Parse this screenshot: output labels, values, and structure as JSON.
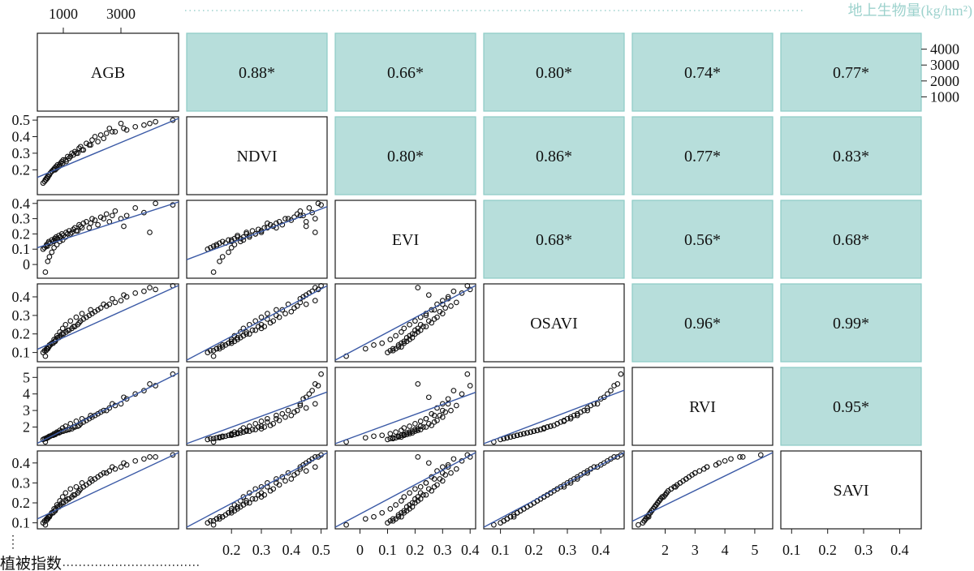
{
  "chart_data": {
    "type": "scatter",
    "variables": [
      "AGB",
      "NDVI",
      "EVI",
      "OSAVI",
      "RVI",
      "SAVI"
    ],
    "annotations": {
      "top_label": "地上生物量(kg/hm²)",
      "left_label": "植被指数"
    },
    "upper_correlations": [
      {
        "row": "AGB",
        "col": "NDVI",
        "text": "0.88*",
        "value": 0.88
      },
      {
        "row": "AGB",
        "col": "EVI",
        "text": "0.66*",
        "value": 0.66
      },
      {
        "row": "AGB",
        "col": "OSAVI",
        "text": "0.80*",
        "value": 0.8
      },
      {
        "row": "AGB",
        "col": "RVI",
        "text": "0.74*",
        "value": 0.74
      },
      {
        "row": "AGB",
        "col": "SAVI",
        "text": "0.77*",
        "value": 0.77
      },
      {
        "row": "NDVI",
        "col": "EVI",
        "text": "0.80*",
        "value": 0.8
      },
      {
        "row": "NDVI",
        "col": "OSAVI",
        "text": "0.86*",
        "value": 0.86
      },
      {
        "row": "NDVI",
        "col": "RVI",
        "text": "0.77*",
        "value": 0.77
      },
      {
        "row": "NDVI",
        "col": "SAVI",
        "text": "0.83*",
        "value": 0.83
      },
      {
        "row": "EVI",
        "col": "OSAVI",
        "text": "0.68*",
        "value": 0.68
      },
      {
        "row": "EVI",
        "col": "RVI",
        "text": "0.56*",
        "value": 0.56
      },
      {
        "row": "EVI",
        "col": "SAVI",
        "text": "0.68*",
        "value": 0.68
      },
      {
        "row": "OSAVI",
        "col": "RVI",
        "text": "0.96*",
        "value": 0.96
      },
      {
        "row": "OSAVI",
        "col": "SAVI",
        "text": "0.99*",
        "value": 0.99
      },
      {
        "row": "RVI",
        "col": "SAVI",
        "text": "0.95*",
        "value": 0.95
      }
    ],
    "axes": {
      "AGB": {
        "lim": [
          100,
          5000
        ],
        "ticks": [
          "1000",
          "3000"
        ],
        "right_ticks": [
          "1000",
          "2000",
          "3000",
          "4000"
        ]
      },
      "NDVI": {
        "lim": [
          0.05,
          0.52
        ],
        "ticks": [
          "0.2",
          "0.3",
          "0.4",
          "0.5"
        ],
        "left_ticks": [
          "0.2",
          "0.3",
          "0.4",
          "0.5"
        ]
      },
      "EVI": {
        "lim": [
          -0.09,
          0.42
        ],
        "ticks": [
          "0",
          "0.1",
          "0.2",
          "0.3",
          "0.4"
        ],
        "left_ticks": [
          "0",
          "0.1",
          "0.2",
          "0.3",
          "0.4"
        ]
      },
      "OSAVI": {
        "lim": [
          0.05,
          0.47
        ],
        "ticks": [
          "0.1",
          "0.2",
          "0.3",
          "0.4"
        ],
        "left_ticks": [
          "0.1",
          "0.2",
          "0.3",
          "0.4"
        ]
      },
      "RVI": {
        "lim": [
          0.9,
          5.6
        ],
        "ticks": [
          "2",
          "3",
          "4",
          "5"
        ],
        "left_ticks": [
          "2",
          "3",
          "4",
          "5"
        ]
      },
      "SAVI": {
        "lim": [
          0.07,
          0.46
        ],
        "ticks": [
          "0.1",
          "0.2",
          "0.3",
          "0.4"
        ],
        "left_ticks": [
          "0.1",
          "0.2",
          "0.3",
          "0.4"
        ]
      }
    },
    "points": {
      "AGB": [
        300,
        350,
        400,
        420,
        450,
        480,
        500,
        550,
        600,
        650,
        700,
        720,
        750,
        800,
        850,
        900,
        950,
        1000,
        1100,
        1150,
        1200,
        1300,
        1350,
        1400,
        1500,
        1550,
        1600,
        1700,
        1800,
        1900,
        2000,
        2100,
        2200,
        2300,
        2500,
        2600,
        2800,
        3000,
        3200,
        3500,
        3800,
        4200,
        4800,
        380,
        460,
        520,
        600,
        680,
        780,
        880,
        980,
        1080,
        1250,
        1450,
        1650,
        1950,
        2400,
        2700,
        3100,
        4000
      ],
      "NDVI": [
        0.12,
        0.13,
        0.14,
        0.15,
        0.15,
        0.16,
        0.17,
        0.18,
        0.19,
        0.2,
        0.21,
        0.2,
        0.22,
        0.23,
        0.22,
        0.24,
        0.25,
        0.26,
        0.25,
        0.28,
        0.27,
        0.3,
        0.29,
        0.31,
        0.3,
        0.33,
        0.34,
        0.32,
        0.36,
        0.35,
        0.38,
        0.4,
        0.37,
        0.41,
        0.42,
        0.45,
        0.43,
        0.48,
        0.44,
        0.46,
        0.47,
        0.49,
        0.5,
        0.14,
        0.16,
        0.17,
        0.19,
        0.2,
        0.21,
        0.23,
        0.24,
        0.26,
        0.28,
        0.3,
        0.32,
        0.35,
        0.39,
        0.43,
        0.45,
        0.48
      ],
      "EVI": [
        0.1,
        0.11,
        0.12,
        0.13,
        0.12,
        0.14,
        0.15,
        0.14,
        0.16,
        0.15,
        0.17,
        0.16,
        0.18,
        0.17,
        0.19,
        0.18,
        0.2,
        0.19,
        0.21,
        0.2,
        0.22,
        0.21,
        0.23,
        0.24,
        0.22,
        0.26,
        0.25,
        0.27,
        0.28,
        0.24,
        0.3,
        0.29,
        0.26,
        0.31,
        0.33,
        0.28,
        0.35,
        0.3,
        0.32,
        0.37,
        0.34,
        0.4,
        0.39,
        -0.05,
        0.02,
        0.05,
        0.08,
        0.11,
        0.13,
        0.15,
        0.16,
        0.18,
        0.2,
        0.22,
        0.24,
        0.27,
        0.3,
        0.32,
        0.25,
        0.21
      ],
      "OSAVI": [
        0.1,
        0.11,
        0.11,
        0.12,
        0.12,
        0.13,
        0.13,
        0.14,
        0.15,
        0.15,
        0.16,
        0.16,
        0.17,
        0.18,
        0.18,
        0.19,
        0.2,
        0.2,
        0.21,
        0.22,
        0.22,
        0.23,
        0.24,
        0.24,
        0.25,
        0.26,
        0.27,
        0.28,
        0.29,
        0.3,
        0.31,
        0.32,
        0.33,
        0.34,
        0.35,
        0.36,
        0.37,
        0.38,
        0.4,
        0.42,
        0.43,
        0.44,
        0.46,
        0.08,
        0.12,
        0.14,
        0.15,
        0.17,
        0.19,
        0.21,
        0.23,
        0.25,
        0.27,
        0.29,
        0.31,
        0.33,
        0.36,
        0.39,
        0.41,
        0.45
      ],
      "RVI": [
        1.25,
        1.3,
        1.3,
        1.35,
        1.35,
        1.4,
        1.4,
        1.45,
        1.5,
        1.5,
        1.55,
        1.55,
        1.6,
        1.65,
        1.65,
        1.7,
        1.75,
        1.75,
        1.8,
        1.85,
        1.85,
        1.9,
        2.0,
        2.0,
        2.05,
        2.1,
        2.2,
        2.3,
        2.4,
        2.5,
        2.6,
        2.7,
        2.8,
        2.9,
        3.0,
        3.15,
        3.3,
        3.4,
        3.7,
        4.0,
        4.2,
        4.5,
        5.2,
        1.1,
        1.35,
        1.45,
        1.5,
        1.6,
        1.7,
        1.8,
        1.95,
        2.05,
        2.2,
        2.35,
        2.5,
        2.7,
        3.0,
        3.4,
        3.8,
        4.6
      ],
      "SAVI": [
        0.1,
        0.11,
        0.11,
        0.12,
        0.12,
        0.13,
        0.13,
        0.14,
        0.15,
        0.15,
        0.16,
        0.16,
        0.17,
        0.18,
        0.18,
        0.19,
        0.2,
        0.2,
        0.21,
        0.22,
        0.22,
        0.23,
        0.24,
        0.24,
        0.25,
        0.26,
        0.27,
        0.28,
        0.29,
        0.3,
        0.31,
        0.32,
        0.33,
        0.34,
        0.35,
        0.36,
        0.37,
        0.38,
        0.39,
        0.41,
        0.42,
        0.43,
        0.44,
        0.09,
        0.12,
        0.13,
        0.15,
        0.17,
        0.19,
        0.21,
        0.23,
        0.25,
        0.27,
        0.28,
        0.3,
        0.32,
        0.35,
        0.38,
        0.4,
        0.43
      ]
    },
    "grid": false,
    "legend": "none",
    "colors": {
      "correlation_fill": "#b7dedb",
      "correlation_border": "#8ccbc6",
      "fit_line": "#3b5aa6",
      "annotation_top": "#9dd2cd"
    }
  }
}
